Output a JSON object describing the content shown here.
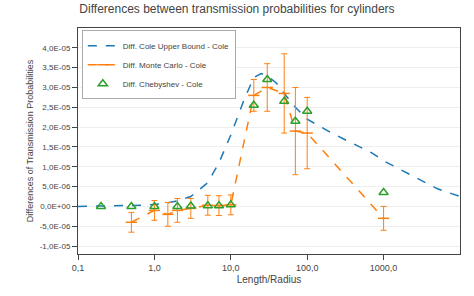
{
  "chart_data": {
    "type": "line",
    "title": "Differences between transmission probabilities for cylinders",
    "x_label": "Length/Radius",
    "y_label": "Differences of Transmission Probabilities",
    "log": "x",
    "grid": "y",
    "legend": "upper left",
    "xlim": [
      0.1,
      10000.0
    ],
    "ylim": [
      -1.2e-05,
      4.5e-05
    ],
    "xticks": [
      {
        "value": 0.1,
        "label": "0,1"
      },
      {
        "value": 1.0,
        "label": "1,0"
      },
      {
        "value": 10.0,
        "label": "10,0"
      },
      {
        "value": 100.0,
        "label": "100,0"
      },
      {
        "value": 1000.0,
        "label": "1000,0"
      }
    ],
    "yticks": [
      {
        "value": -1e-05,
        "label": "-1,0E-05"
      },
      {
        "value": -5e-06,
        "label": "-5,0E-06"
      },
      {
        "value": 0.0,
        "label": "0,0E+00"
      },
      {
        "value": 5e-06,
        "label": "5,0E-06"
      },
      {
        "value": 1e-05,
        "label": "1,0E-05"
      },
      {
        "value": 1.5e-05,
        "label": "1,5E-05"
      },
      {
        "value": 2e-05,
        "label": "2,0E-05"
      },
      {
        "value": 2.5e-05,
        "label": "2,5E-05"
      },
      {
        "value": 3e-05,
        "label": "3,0E-05"
      },
      {
        "value": 3.5e-05,
        "label": "3,5E-05"
      },
      {
        "value": 4e-05,
        "label": "4,0E-05"
      }
    ],
    "series": [
      {
        "name": "Diff. Cole Upper Bound - Cole",
        "line_style": "dashed",
        "marker": "none",
        "x": [
          0.1,
          0.2,
          0.3,
          0.5,
          0.7,
          1.0,
          1.5,
          2.0,
          3.0,
          5.0,
          7.0,
          10.0,
          15.0,
          20.0,
          25.0,
          30.0,
          40.0,
          50.0,
          70.0,
          100.0,
          150.0,
          200.0,
          300.0,
          500.0,
          700.0,
          1000.0,
          2000.0,
          5000.0,
          10000.0
        ],
        "values": [
          0.0,
          4e-08,
          8e-08,
          1.8e-07,
          3e-07,
          5e-07,
          9e-07,
          1.4e-06,
          2.5e-06,
          6e-06,
          1.1e-05,
          1.8e-05,
          2.7e-05,
          3.25e-05,
          3.35e-05,
          3.3e-05,
          3.1e-05,
          2.85e-05,
          2.5e-05,
          2.2e-05,
          2e-05,
          1.87e-05,
          1.7e-05,
          1.5e-05,
          1.35e-05,
          1.15e-05,
          8.5e-06,
          4.5e-06,
          2.5e-06
        ]
      },
      {
        "name": "Diff. Monte Carlo - Cole",
        "line_style": "dashed",
        "marker": "dash",
        "x": [
          0.5,
          1.0,
          1.5,
          2.0,
          3.0,
          5.0,
          7.0,
          10.0,
          20.0,
          30.0,
          50.0,
          70.0,
          100.0,
          1000.0
        ],
        "values": [
          -4e-06,
          -1e-06,
          -2e-06,
          -1e-06,
          -5e-07,
          3e-07,
          2e-07,
          4e-07,
          2.8e-05,
          3e-05,
          2.85e-05,
          1.9e-05,
          1.85e-05,
          -3e-06
        ],
        "error": [
          2.5e-06,
          2.5e-06,
          3e-06,
          3e-06,
          2.5e-06,
          2.5e-06,
          2.5e-06,
          2.5e-06,
          4e-06,
          6e-06,
          1e-05,
          1.1e-05,
          9e-06,
          3e-06
        ]
      },
      {
        "name": "Diff. Chebyshev - Cole",
        "line_style": "none",
        "marker": "triangle-open",
        "x": [
          0.2,
          0.5,
          1.0,
          2.0,
          3.0,
          5.0,
          7.0,
          10.0,
          20.0,
          30.0,
          50.0,
          70.0,
          100.0,
          1000.0
        ],
        "values": [
          0.0,
          0.0,
          0.0,
          0.0,
          1e-07,
          2e-07,
          2e-07,
          4e-07,
          2.55e-05,
          3.2e-05,
          2.65e-05,
          2.15e-05,
          2.4e-05,
          3.5e-06
        ]
      }
    ]
  }
}
